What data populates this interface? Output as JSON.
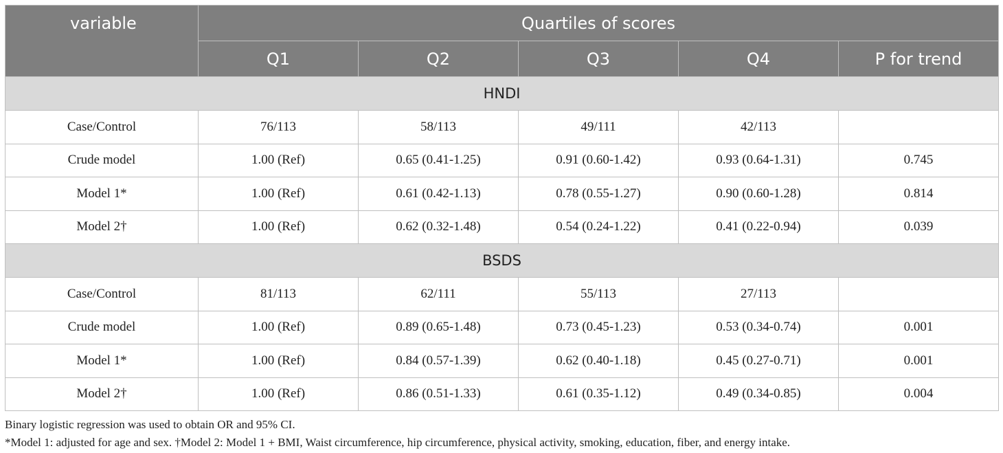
{
  "table": {
    "header": {
      "variable": "variable",
      "group": "Quartiles of scores",
      "columns": [
        "Q1",
        "Q2",
        "Q3",
        "Q4",
        "P for trend"
      ]
    },
    "sections": [
      {
        "title": "HNDI",
        "rows": [
          {
            "label": "Case/Control",
            "cells": [
              "76/113",
              "58/113",
              "49/111",
              "42/113",
              ""
            ]
          },
          {
            "label": "Crude model",
            "cells": [
              "1.00 (Ref)",
              "0.65 (0.41-1.25)",
              "0.91 (0.60-1.42)",
              "0.93 (0.64-1.31)",
              "0.745"
            ]
          },
          {
            "label": "Model 1*",
            "cells": [
              "1.00 (Ref)",
              "0.61 (0.42-1.13)",
              "0.78 (0.55-1.27)",
              "0.90 (0.60-1.28)",
              "0.814"
            ]
          },
          {
            "label": "Model 2†",
            "cells": [
              "1.00 (Ref)",
              "0.62 (0.32-1.48)",
              "0.54 (0.24-1.22)",
              "0.41 (0.22-0.94)",
              "0.039"
            ]
          }
        ]
      },
      {
        "title": "BSDS",
        "rows": [
          {
            "label": "Case/Control",
            "cells": [
              "81/113",
              "62/111",
              "55/113",
              "27/113",
              ""
            ]
          },
          {
            "label": "Crude model",
            "cells": [
              "1.00 (Ref)",
              "0.89 (0.65-1.48)",
              "0.73 (0.45-1.23)",
              "0.53 (0.34-0.74)",
              "0.001"
            ]
          },
          {
            "label": "Model 1*",
            "cells": [
              "1.00 (Ref)",
              "0.84 (0.57-1.39)",
              "0.62 (0.40-1.18)",
              "0.45 (0.27-0.71)",
              "0.001"
            ]
          },
          {
            "label": "Model 2†",
            "cells": [
              "1.00 (Ref)",
              "0.86 (0.51-1.33)",
              "0.61 (0.35-1.12)",
              "0.49 (0.34-0.85)",
              "0.004"
            ]
          }
        ]
      }
    ]
  },
  "footnotes": [
    "Binary logistic regression was used to obtain OR and 95% CI.",
    "*Model 1: adjusted for age and sex. †Model 2: Model 1 + BMI, Waist circumference, hip circumference, physical activity, smoking, education, fiber, and energy intake."
  ],
  "colors": {
    "header_bg": "#7f7f7f",
    "section_bg": "#d9d9d9",
    "border": "#bfbfbf"
  }
}
